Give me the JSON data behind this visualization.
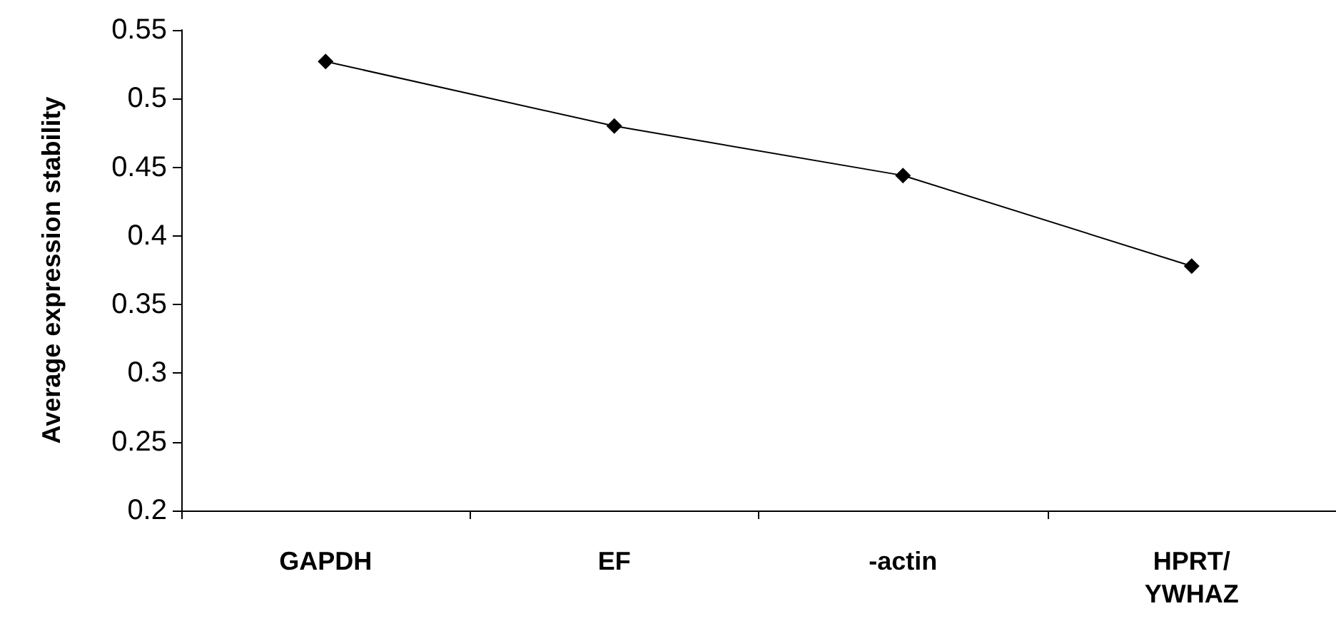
{
  "chart_data": {
    "type": "line",
    "ylabel": "Average expression stability",
    "categories": [
      "GAPDH",
      "EF",
      "-actin",
      "HPRT/YWHAZ"
    ],
    "series": [
      {
        "color": "#000000",
        "values": [
          0.527,
          0.48,
          0.444,
          0.378
        ]
      }
    ],
    "ylim": [
      0.2,
      0.55
    ],
    "yticks": [
      0.2,
      0.25,
      0.3,
      0.35,
      0.4,
      0.45,
      0.5,
      0.55
    ],
    "grid": false,
    "marker": "diamond",
    "line_style": "solid"
  }
}
